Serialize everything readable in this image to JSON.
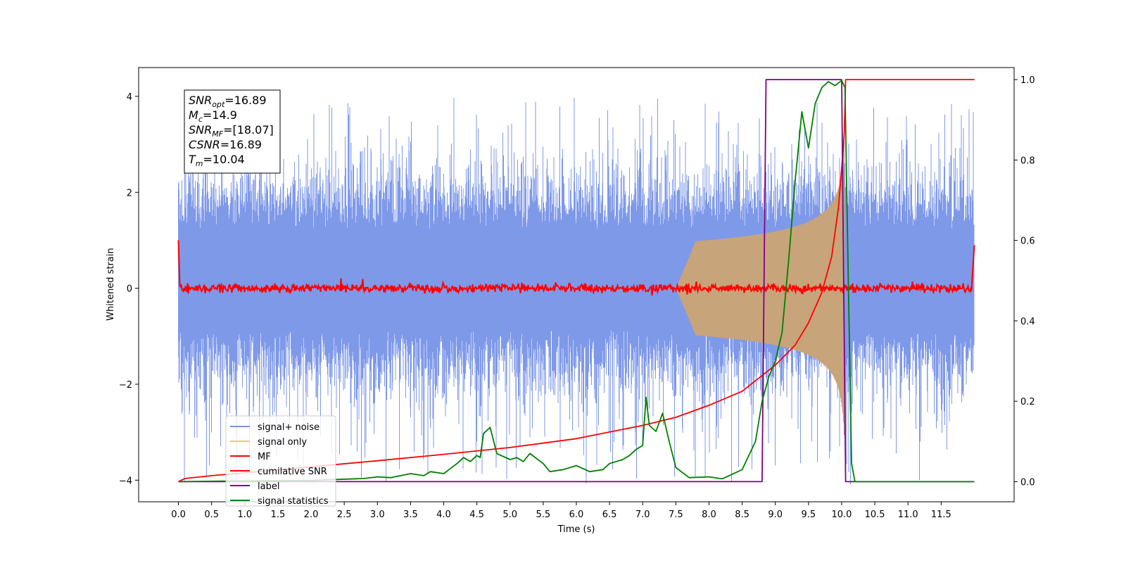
{
  "chart_data": {
    "type": "line",
    "xlabel": "Time (s)",
    "ylabel": "Whitened strain",
    "xlim": [
      -0.6,
      12.6
    ],
    "ylim": [
      -4.45,
      4.6
    ],
    "ylim_right": [
      -0.05,
      1.03
    ],
    "x_ticks": [
      0.0,
      0.5,
      1.0,
      1.5,
      2.0,
      2.5,
      3.0,
      3.5,
      4.0,
      4.5,
      5.0,
      5.5,
      6.0,
      6.5,
      7.0,
      7.5,
      8.0,
      8.5,
      9.0,
      9.5,
      10.0,
      10.5,
      11.0,
      11.5
    ],
    "x_tick_labels": [
      "0.0",
      "0.5",
      "1.0",
      "1.5",
      "2.0",
      "2.5",
      "3.0",
      "3.5",
      "4.0",
      "4.5",
      "5.0",
      "5.5",
      "6.0",
      "6.5",
      "7.0",
      "7.5",
      "8.0",
      "8.5",
      "9.0",
      "9.5",
      "10.0",
      "10.5",
      "11.0",
      "11.5"
    ],
    "y_ticks": [
      -4,
      -2,
      0,
      2,
      4
    ],
    "y_tick_labels": [
      "−4",
      "−2",
      "0",
      "2",
      "4"
    ],
    "y_right_ticks": [
      0.0,
      0.2,
      0.4,
      0.6,
      0.8,
      1.0
    ],
    "y_right_tick_labels": [
      "0.0",
      "0.2",
      "0.4",
      "0.6",
      "0.8",
      "1.0"
    ],
    "grid": false,
    "legend_position": "lower-left",
    "annotation": [
      {
        "sym": "SNR",
        "sub": "opt",
        "value": "=16.89"
      },
      {
        "sym": "M",
        "sub": "c",
        "value": "=14.9"
      },
      {
        "sym": "SNR",
        "sub": "MF",
        "value": "=[18.07]"
      },
      {
        "sym": "CSNR",
        "sub": "",
        "value": "=16.89"
      },
      {
        "sym": "T",
        "sub": "m",
        "value": "=10.04"
      }
    ],
    "series": [
      {
        "name": "signal+ noise",
        "axis": "left",
        "color": "#7893e8",
        "style": "noise-band",
        "x_range": [
          0.0,
          12.0
        ],
        "center": 0.2,
        "typical_upper": 2.0,
        "typical_lower": -1.7,
        "max": 4.0,
        "min": -4.1
      },
      {
        "name": "signal only",
        "axis": "left",
        "color": "#f5c86a",
        "style": "chirp-envelope",
        "x_range": [
          7.5,
          10.04
        ],
        "amplitude_at_end": 3.2
      },
      {
        "name": "MF",
        "axis": "left",
        "color": "#ff0000",
        "style": "flat-noise",
        "x_range": [
          0.0,
          12.0
        ],
        "level": 0.0,
        "spread": 0.08,
        "edge_value": 1.0
      },
      {
        "name": "cumilative SNR",
        "axis": "right",
        "color": "#ff0000",
        "points": [
          [
            0.0,
            0.0
          ],
          [
            0.1,
            0.008
          ],
          [
            0.5,
            0.015
          ],
          [
            1.0,
            0.022
          ],
          [
            2.0,
            0.037
          ],
          [
            3.0,
            0.052
          ],
          [
            4.0,
            0.068
          ],
          [
            5.0,
            0.085
          ],
          [
            6.0,
            0.107
          ],
          [
            7.0,
            0.14
          ],
          [
            7.5,
            0.16
          ],
          [
            8.0,
            0.19
          ],
          [
            8.5,
            0.225
          ],
          [
            9.0,
            0.29
          ],
          [
            9.3,
            0.34
          ],
          [
            9.5,
            0.395
          ],
          [
            9.7,
            0.47
          ],
          [
            9.85,
            0.56
          ],
          [
            9.95,
            0.68
          ],
          [
            10.02,
            0.82
          ],
          [
            10.04,
            0.87
          ],
          [
            10.06,
            1.0
          ],
          [
            12.0,
            1.0
          ]
        ]
      },
      {
        "name": "label",
        "axis": "right",
        "color": "#800080",
        "points": [
          [
            0.0,
            0.0
          ],
          [
            8.8,
            0.0
          ],
          [
            8.86,
            1.0
          ],
          [
            10.0,
            1.0
          ],
          [
            10.06,
            0.0
          ],
          [
            12.0,
            0.0
          ]
        ]
      },
      {
        "name": "signal statistics",
        "axis": "right",
        "color": "#008000",
        "points": [
          [
            0.0,
            0.0
          ],
          [
            1.0,
            0.002
          ],
          [
            2.0,
            0.003
          ],
          [
            2.8,
            0.008
          ],
          [
            3.0,
            0.012
          ],
          [
            3.2,
            0.01
          ],
          [
            3.5,
            0.02
          ],
          [
            3.7,
            0.015
          ],
          [
            3.8,
            0.025
          ],
          [
            4.0,
            0.02
          ],
          [
            4.2,
            0.045
          ],
          [
            4.3,
            0.06
          ],
          [
            4.4,
            0.05
          ],
          [
            4.5,
            0.065
          ],
          [
            4.55,
            0.06
          ],
          [
            4.6,
            0.12
          ],
          [
            4.7,
            0.135
          ],
          [
            4.8,
            0.07
          ],
          [
            5.0,
            0.055
          ],
          [
            5.1,
            0.06
          ],
          [
            5.2,
            0.05
          ],
          [
            5.3,
            0.07
          ],
          [
            5.5,
            0.045
          ],
          [
            5.6,
            0.025
          ],
          [
            5.8,
            0.03
          ],
          [
            6.0,
            0.04
          ],
          [
            6.2,
            0.025
          ],
          [
            6.4,
            0.03
          ],
          [
            6.5,
            0.045
          ],
          [
            6.7,
            0.055
          ],
          [
            6.8,
            0.065
          ],
          [
            6.9,
            0.08
          ],
          [
            7.0,
            0.09
          ],
          [
            7.05,
            0.21
          ],
          [
            7.1,
            0.14
          ],
          [
            7.2,
            0.125
          ],
          [
            7.3,
            0.17
          ],
          [
            7.4,
            0.1
          ],
          [
            7.5,
            0.035
          ],
          [
            7.7,
            0.01
          ],
          [
            8.0,
            0.012
          ],
          [
            8.2,
            0.007
          ],
          [
            8.5,
            0.03
          ],
          [
            8.7,
            0.1
          ],
          [
            8.8,
            0.2
          ],
          [
            8.9,
            0.26
          ],
          [
            9.0,
            0.3
          ],
          [
            9.1,
            0.37
          ],
          [
            9.2,
            0.55
          ],
          [
            9.3,
            0.75
          ],
          [
            9.4,
            0.92
          ],
          [
            9.5,
            0.83
          ],
          [
            9.6,
            0.94
          ],
          [
            9.7,
            0.98
          ],
          [
            9.8,
            0.995
          ],
          [
            9.9,
            0.985
          ],
          [
            10.0,
            0.998
          ],
          [
            10.05,
            0.98
          ],
          [
            10.1,
            0.5
          ],
          [
            10.15,
            0.045
          ],
          [
            10.2,
            0.0
          ],
          [
            12.0,
            0.0
          ]
        ]
      }
    ]
  }
}
